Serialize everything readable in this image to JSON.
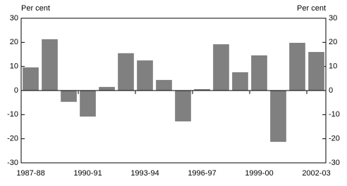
{
  "chart_data": {
    "type": "bar",
    "y_label": "Per cent",
    "y2_label": "Per cent",
    "categories": [
      "1987-88",
      null,
      null,
      "1990-91",
      null,
      null,
      "1993-94",
      null,
      null,
      "1996-97",
      null,
      null,
      "1999-00",
      null,
      null,
      "2002-03"
    ],
    "values": [
      9.6,
      21.3,
      -4.7,
      -10.8,
      1.5,
      15.5,
      12.5,
      4.4,
      -12.8,
      0.6,
      19.2,
      7.6,
      14.6,
      -21.3,
      19.8,
      16.0
    ],
    "color": "#808080",
    "ylim": [
      -30,
      30
    ],
    "yticks": [
      -30,
      -20,
      -10,
      0,
      10,
      20,
      30
    ],
    "y2lim": [
      -30,
      30
    ],
    "y2ticks": [
      -30,
      -20,
      -10,
      0,
      10,
      20,
      30
    ]
  }
}
